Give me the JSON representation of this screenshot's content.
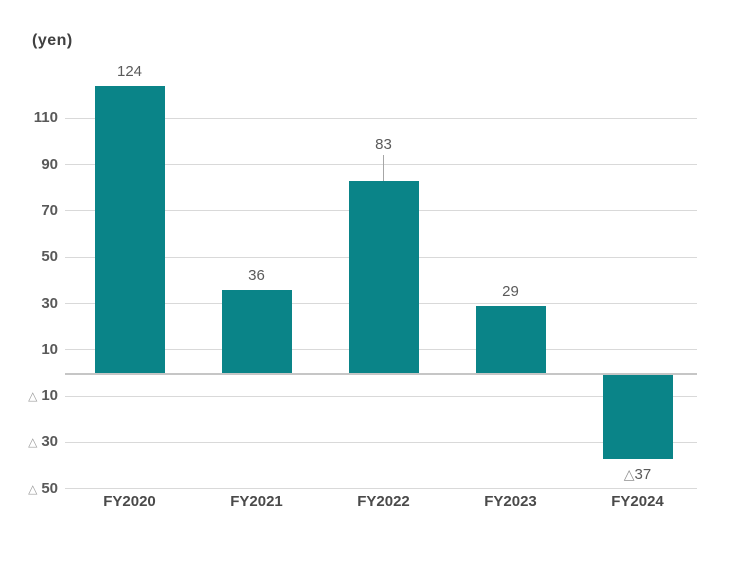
{
  "page": {
    "background_color": "#ffffff"
  },
  "chart_data": {
    "type": "bar",
    "title": "",
    "unit_label": "(yen)",
    "xlabel": "",
    "ylabel": "",
    "grid": true,
    "legend": false,
    "negative_notation": "triangle",
    "categories": [
      "FY2020",
      "FY2021",
      "FY2022",
      "FY2023",
      "FY2024"
    ],
    "values": [
      124,
      36,
      83,
      29,
      -37
    ],
    "data_labels": [
      {
        "prefix": "",
        "text": "124",
        "callout": false
      },
      {
        "prefix": "",
        "text": "36",
        "callout": false
      },
      {
        "prefix": "",
        "text": "83",
        "callout": true
      },
      {
        "prefix": "",
        "text": "29",
        "callout": false
      },
      {
        "prefix": "△",
        "text": "37",
        "callout": false
      }
    ],
    "y_axis": {
      "ylim": [
        -55,
        135
      ],
      "tick_interval": 20,
      "ticks": [
        {
          "value": 110,
          "prefix": "",
          "label": "110"
        },
        {
          "value": 90,
          "prefix": "",
          "label": "90"
        },
        {
          "value": 70,
          "prefix": "",
          "label": "70"
        },
        {
          "value": 50,
          "prefix": "",
          "label": "50"
        },
        {
          "value": 30,
          "prefix": "",
          "label": "30"
        },
        {
          "value": 10,
          "prefix": "",
          "label": "10"
        },
        {
          "value": -10,
          "prefix": "△",
          "label": "10"
        },
        {
          "value": -30,
          "prefix": "△",
          "label": "30"
        },
        {
          "value": -50,
          "prefix": "△",
          "label": "50"
        }
      ]
    },
    "colors": {
      "bar": "#0a8488",
      "gridline": "#d9d9d9",
      "zero_line": "#c6c6c6",
      "tick_text": "#595959",
      "value_text": "#5a5a5a",
      "category_text": "#4a4a4a",
      "unit_text": "#404040",
      "triangle": "#9b9b9b",
      "leader_line": "#a6a6a6"
    }
  }
}
